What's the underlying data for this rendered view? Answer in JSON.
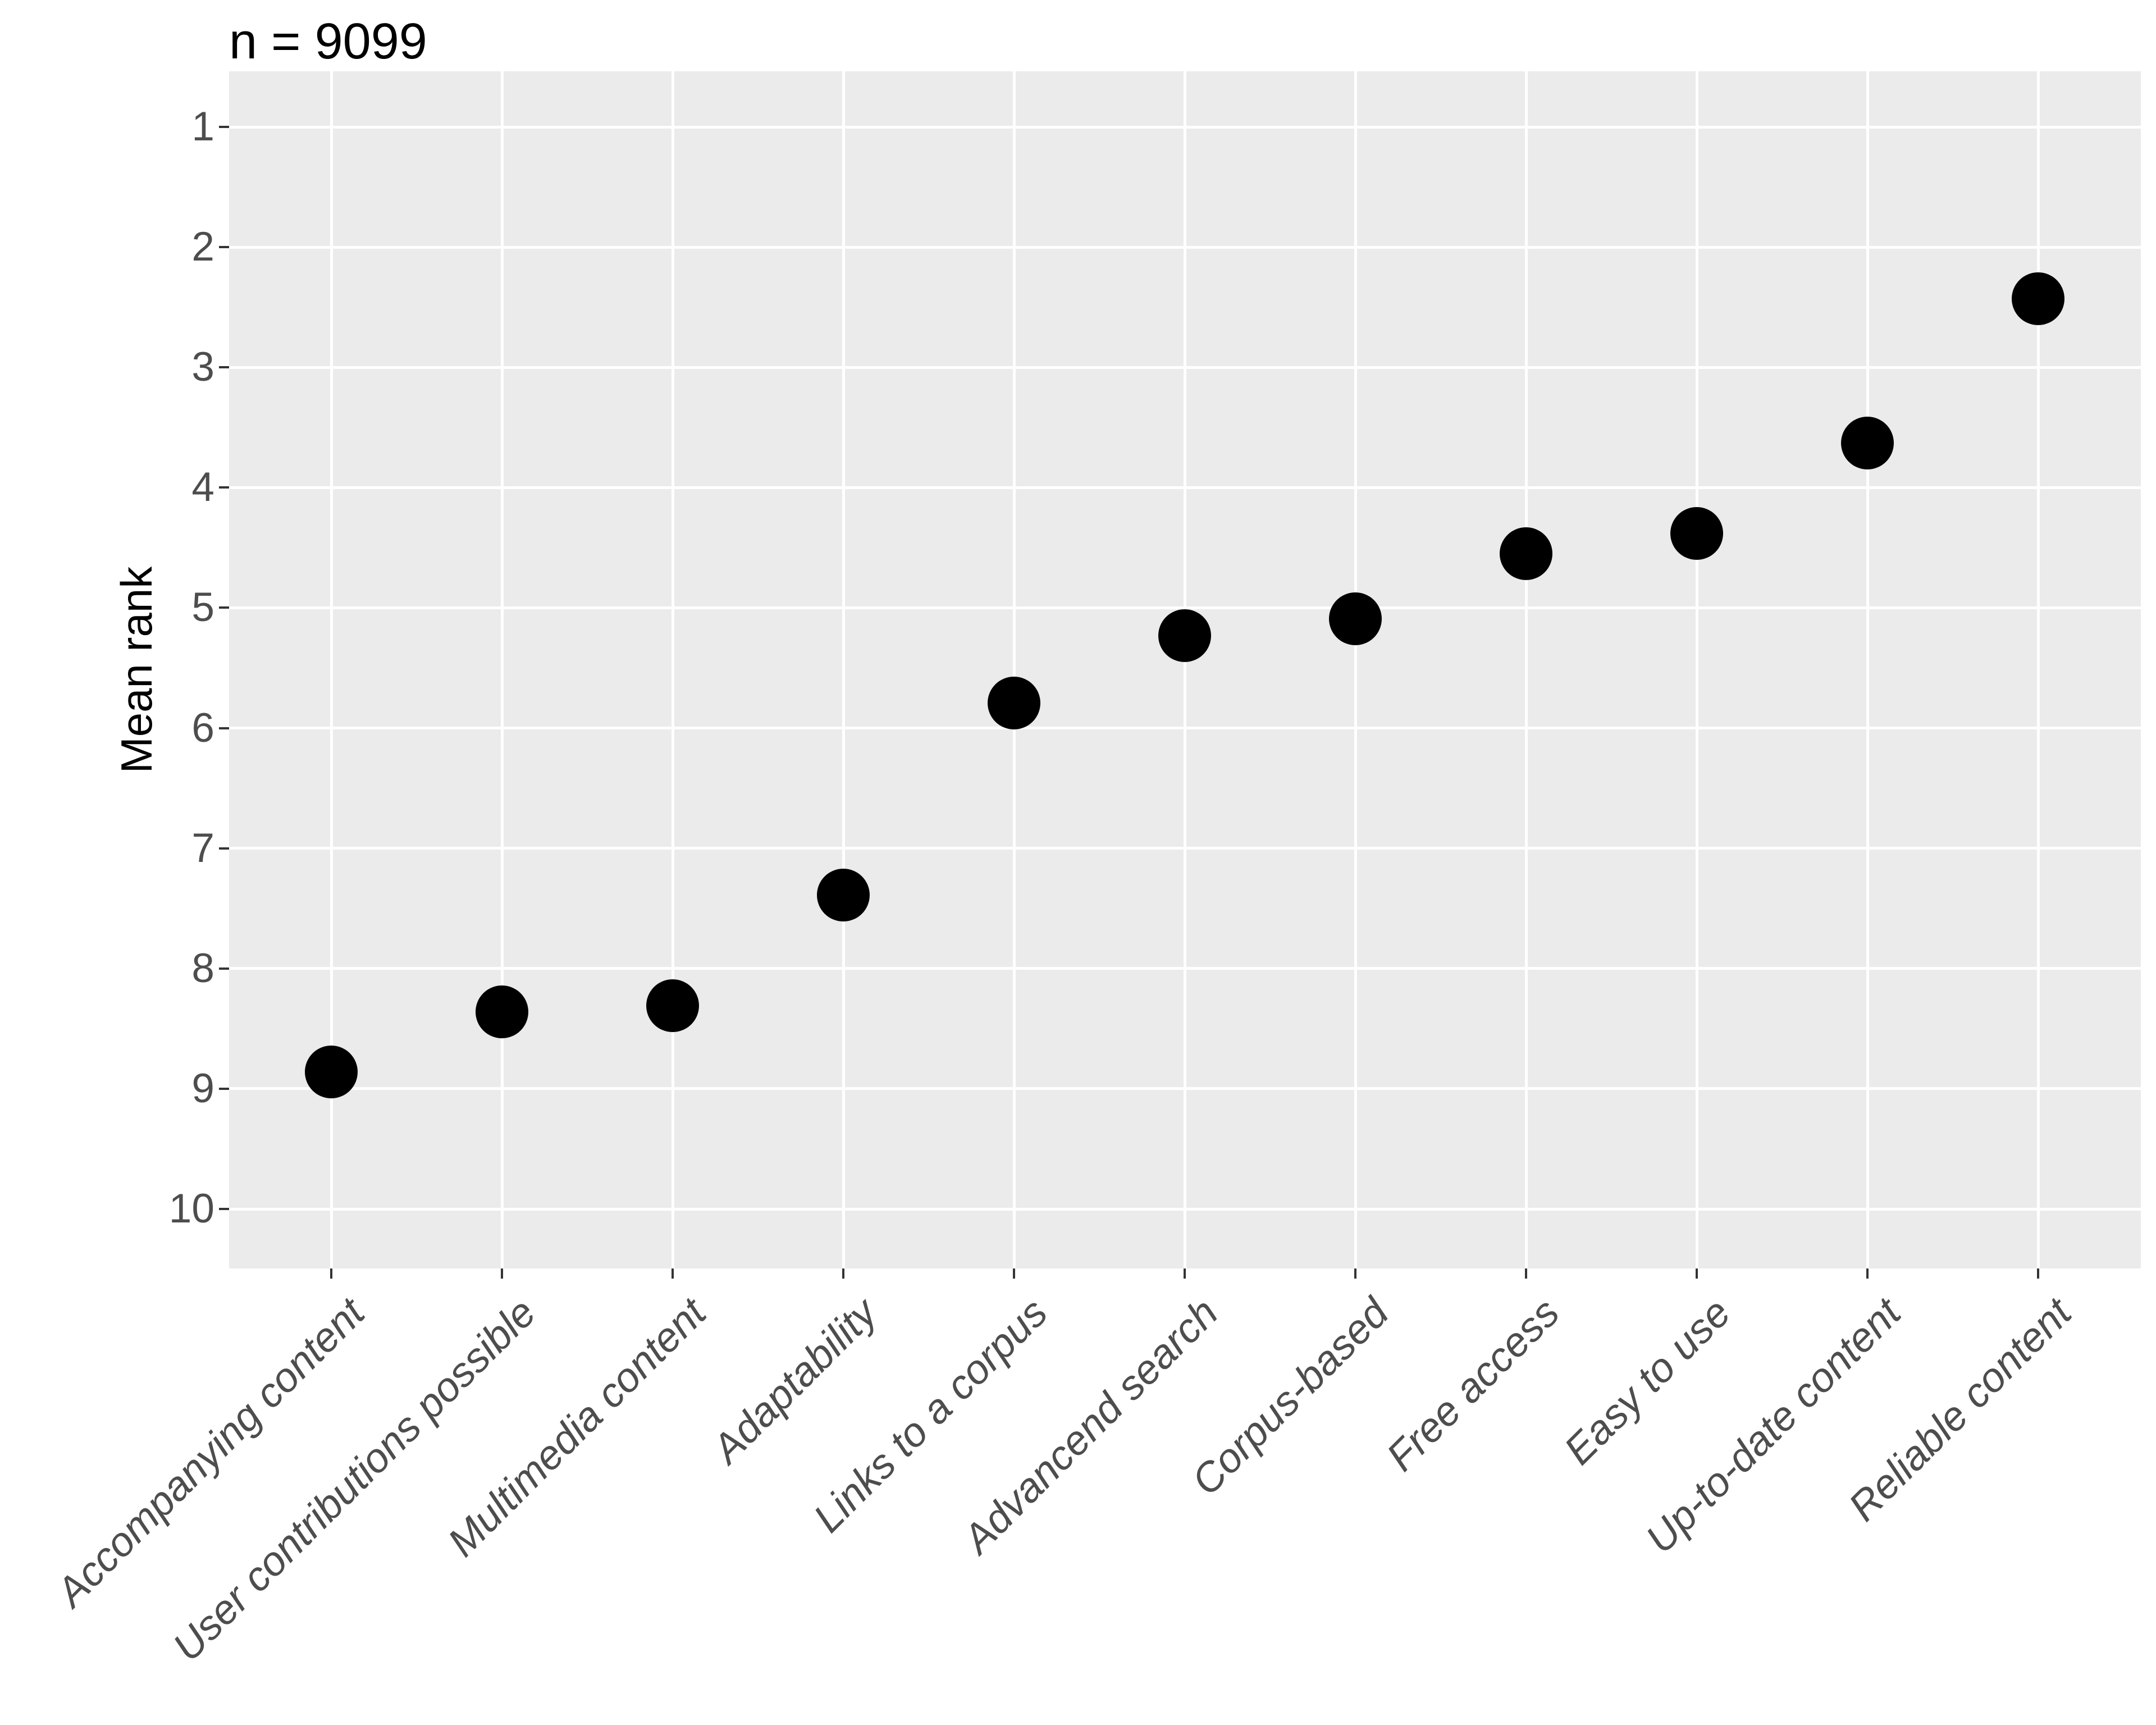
{
  "title": "n = 9099",
  "chart_data": {
    "type": "scatter",
    "title": "n = 9099",
    "xlabel": "",
    "ylabel": "Mean rank",
    "categories": [
      "Accompanying content",
      "User contributions possible",
      "Multimedia content",
      "Adaptability",
      "Links to a corpus",
      "Advancend search",
      "Corpus-based",
      "Free access",
      "Easy to use",
      "Up-to-date content",
      "Reliable content"
    ],
    "values": [
      8.86,
      8.36,
      8.31,
      7.39,
      5.79,
      5.23,
      5.09,
      4.55,
      4.38,
      3.63,
      2.43
    ],
    "y_ticks": [
      1,
      2,
      3,
      4,
      5,
      6,
      7,
      8,
      9,
      10
    ],
    "y_axis_reversed": true,
    "ylim": [
      0.55,
      10.45
    ],
    "grid": "major gridlines only, white on grey panel",
    "legend": "none",
    "colors": {
      "point": "#000000",
      "panel_background": "#EBEBEB",
      "gridline": "#FFFFFF",
      "tick_label": "#4D4D4D",
      "tick_mark": "#333333",
      "title": "#000000",
      "page_background": "#FFFFFF"
    }
  }
}
